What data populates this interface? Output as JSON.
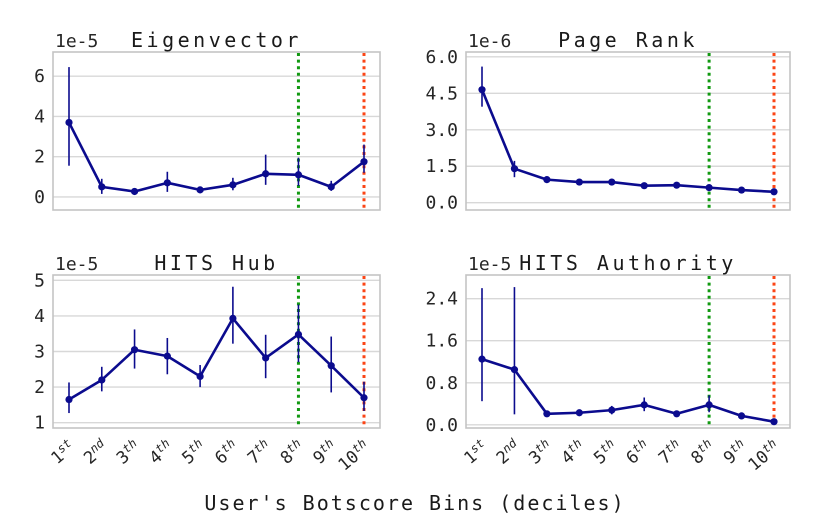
{
  "figure": {
    "xlabel": "User's Botscore Bins (deciles)",
    "x_ticks": [
      {
        "base": "1",
        "sup": "st"
      },
      {
        "base": "2",
        "sup": "nd"
      },
      {
        "base": "3",
        "sup": "th"
      },
      {
        "base": "4",
        "sup": "th"
      },
      {
        "base": "5",
        "sup": "th"
      },
      {
        "base": "6",
        "sup": "th"
      },
      {
        "base": "7",
        "sup": "th"
      },
      {
        "base": "8",
        "sup": "th"
      },
      {
        "base": "9",
        "sup": "th"
      },
      {
        "base": "10",
        "sup": "th"
      }
    ],
    "colors": {
      "line": "#0b0b8e",
      "green_vline": "#119911",
      "orange_vline": "#fb4516",
      "grid": "#d8d8d8",
      "spine": "#c4c4c4",
      "text": "#262626"
    },
    "vlines": [
      {
        "name": "green-dotted-vline",
        "at_category": "8th",
        "index": 7,
        "color": "#119911",
        "style": "dotted"
      },
      {
        "name": "orange-dotted-vline",
        "at_category": "10th",
        "index": 9,
        "color": "#fb4516",
        "style": "dotted"
      }
    ]
  },
  "chart_data": [
    {
      "type": "line",
      "title": "Eigenvector",
      "scale_label": "1e-5",
      "categories": [
        "1st",
        "2nd",
        "3th",
        "4th",
        "5th",
        "6th",
        "7th",
        "8th",
        "9th",
        "10th"
      ],
      "values": [
        3.7,
        0.5,
        0.27,
        0.7,
        0.35,
        0.6,
        1.15,
        1.1,
        0.5,
        1.75
      ],
      "err_low": [
        1.55,
        0.15,
        0.2,
        0.25,
        0.28,
        0.33,
        0.6,
        0.55,
        0.3,
        1.2
      ],
      "err_high": [
        6.45,
        0.9,
        0.35,
        1.25,
        0.45,
        0.95,
        2.1,
        1.95,
        0.8,
        2.6
      ],
      "ylim": [
        -0.65,
        7.2
      ],
      "yticks": [
        {
          "v": 0,
          "label": "0"
        },
        {
          "v": 2,
          "label": "2"
        },
        {
          "v": 4,
          "label": "4"
        },
        {
          "v": 6,
          "label": "6"
        }
      ],
      "grid": true
    },
    {
      "type": "line",
      "title": "Page Rank",
      "scale_label": "1e-6",
      "categories": [
        "1st",
        "2nd",
        "3th",
        "4th",
        "5th",
        "6th",
        "7th",
        "8th",
        "9th",
        "10th"
      ],
      "values": [
        4.65,
        1.4,
        0.95,
        0.85,
        0.85,
        0.7,
        0.72,
        0.62,
        0.52,
        0.45
      ],
      "err_low": [
        3.95,
        1.05,
        0.83,
        0.75,
        0.75,
        0.6,
        0.62,
        0.52,
        0.42,
        0.33
      ],
      "err_high": [
        5.6,
        1.72,
        1.07,
        0.95,
        0.95,
        0.8,
        0.82,
        0.72,
        0.62,
        0.57
      ],
      "ylim": [
        -0.3,
        6.2
      ],
      "yticks": [
        {
          "v": 0,
          "label": "0.0"
        },
        {
          "v": 1.5,
          "label": "1.5"
        },
        {
          "v": 3,
          "label": "3.0"
        },
        {
          "v": 4.5,
          "label": "4.5"
        },
        {
          "v": 6,
          "label": "6.0"
        }
      ],
      "grid": true
    },
    {
      "type": "line",
      "title": "HITS Hub",
      "scale_label": "1e-5",
      "categories": [
        "1st",
        "2nd",
        "3th",
        "4th",
        "5th",
        "6th",
        "7th",
        "8th",
        "9th",
        "10th"
      ],
      "values": [
        1.65,
        2.2,
        3.05,
        2.87,
        2.3,
        3.93,
        2.82,
        3.48,
        2.6,
        1.7
      ],
      "err_low": [
        1.27,
        1.88,
        2.52,
        2.36,
        2.0,
        3.22,
        2.25,
        2.7,
        1.85,
        1.33
      ],
      "err_high": [
        2.13,
        2.57,
        3.62,
        3.38,
        2.62,
        4.82,
        3.47,
        4.32,
        3.42,
        2.15
      ],
      "ylim": [
        0.85,
        5.15
      ],
      "yticks": [
        {
          "v": 1,
          "label": "1"
        },
        {
          "v": 2,
          "label": "2"
        },
        {
          "v": 3,
          "label": "3"
        },
        {
          "v": 4,
          "label": "4"
        },
        {
          "v": 5,
          "label": "5"
        }
      ],
      "grid": true
    },
    {
      "type": "line",
      "title": "HITS Authority",
      "scale_label": "1e-5",
      "categories": [
        "1st",
        "2nd",
        "3th",
        "4th",
        "5th",
        "6th",
        "7th",
        "8th",
        "9th",
        "10th"
      ],
      "values": [
        1.25,
        1.05,
        0.21,
        0.23,
        0.28,
        0.38,
        0.21,
        0.38,
        0.17,
        0.06
      ],
      "err_low": [
        0.45,
        0.2,
        0.15,
        0.17,
        0.2,
        0.26,
        0.15,
        0.24,
        0.11,
        0.02
      ],
      "err_high": [
        2.6,
        2.62,
        0.27,
        0.29,
        0.36,
        0.52,
        0.27,
        0.56,
        0.23,
        0.1
      ],
      "ylim": [
        -0.06,
        2.85
      ],
      "yticks": [
        {
          "v": 0,
          "label": "0.0"
        },
        {
          "v": 0.8,
          "label": "0.8"
        },
        {
          "v": 1.6,
          "label": "1.6"
        },
        {
          "v": 2.4,
          "label": "2.4"
        }
      ],
      "grid": true
    }
  ]
}
